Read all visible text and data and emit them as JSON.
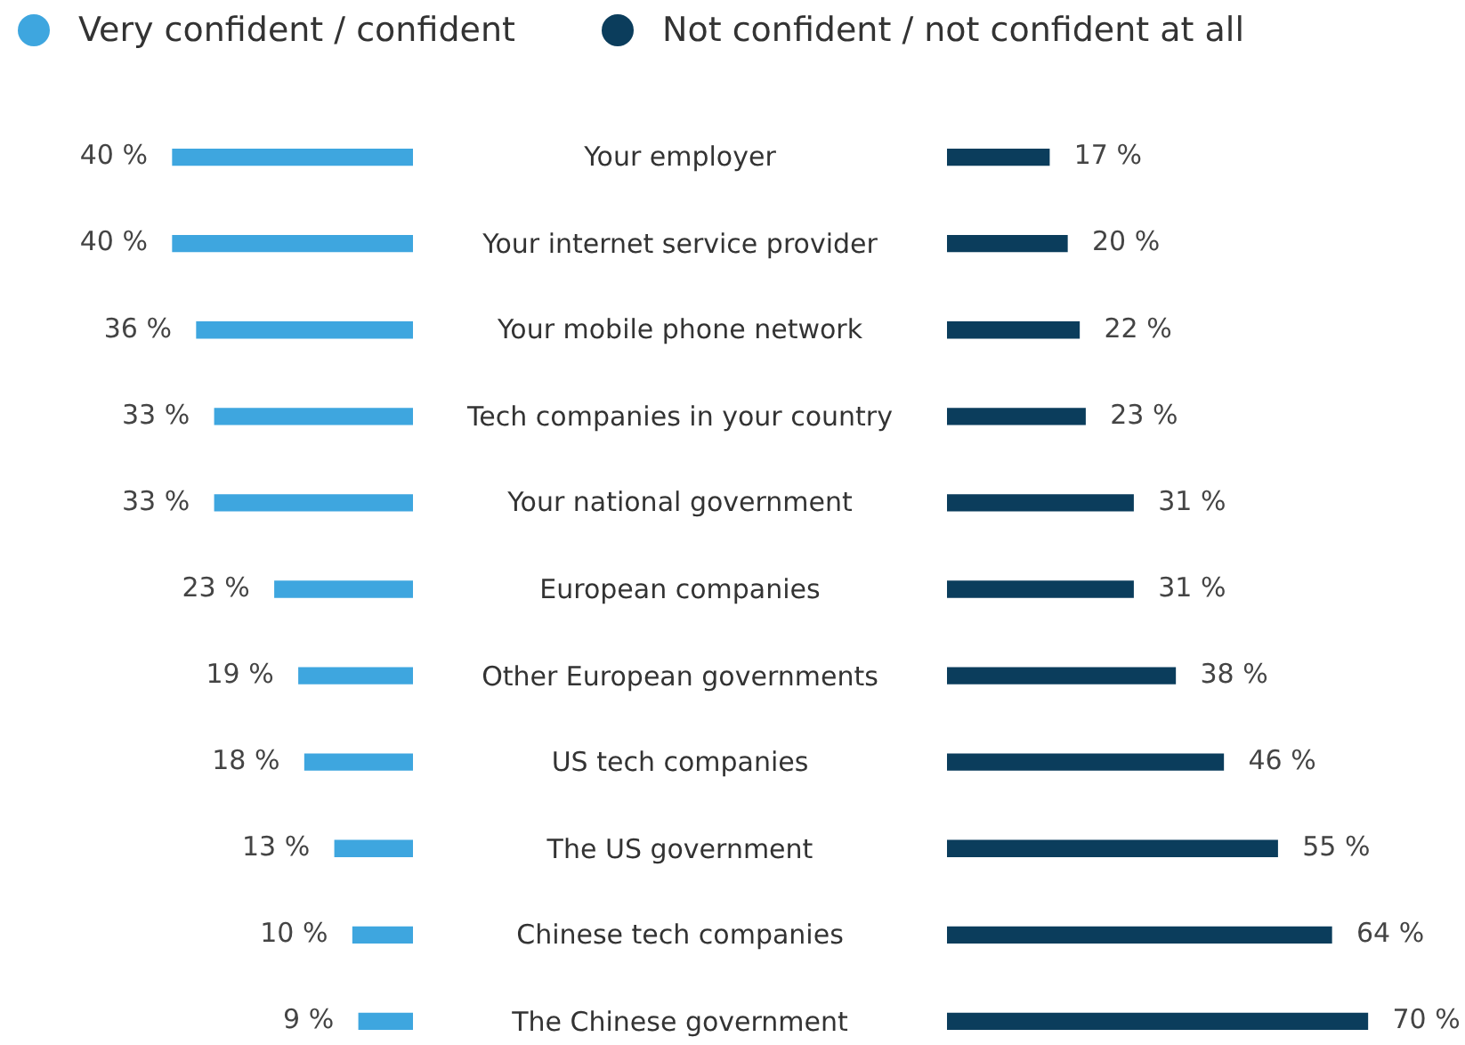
{
  "chart_data": [
    {
      "type": "bar",
      "orientation": "horizontal",
      "legend": "top",
      "categories": [
        "Your employer",
        "Your internet service provider",
        "Your mobile phone network",
        "Tech companies in your country",
        "Your national government",
        "European companies",
        "Other European governments",
        "US tech companies",
        "The US government",
        "Chinese tech companies",
        "The Chinese government"
      ],
      "series": [
        {
          "name": "Very confident / confident",
          "color": "#3ea6df",
          "values": [
            40,
            40,
            36,
            33,
            33,
            23,
            19,
            18,
            13,
            10,
            9
          ],
          "value_labels": [
            "40 %",
            "40 %",
            "36 %",
            "33 %",
            "33 %",
            "23 %",
            "19 %",
            "18 %",
            "13 %",
            "10 %",
            "9 %"
          ]
        }
      ]
    },
    {
      "type": "bar",
      "orientation": "horizontal",
      "legend": "top left",
      "series": [
        {
          "name": "Not confident / not confident at all",
          "color": "#0b3d5c",
          "values": [
            17,
            20,
            22,
            23,
            31,
            31,
            38,
            46,
            55,
            64,
            70
          ],
          "value_labels": [
            "17 %",
            "20 %",
            "22 %",
            "23 %",
            "31 %",
            "31 %",
            "38 %",
            "46 %",
            "55 %",
            "64 %",
            "70 %"
          ]
        }
      ]
    }
  ]
}
